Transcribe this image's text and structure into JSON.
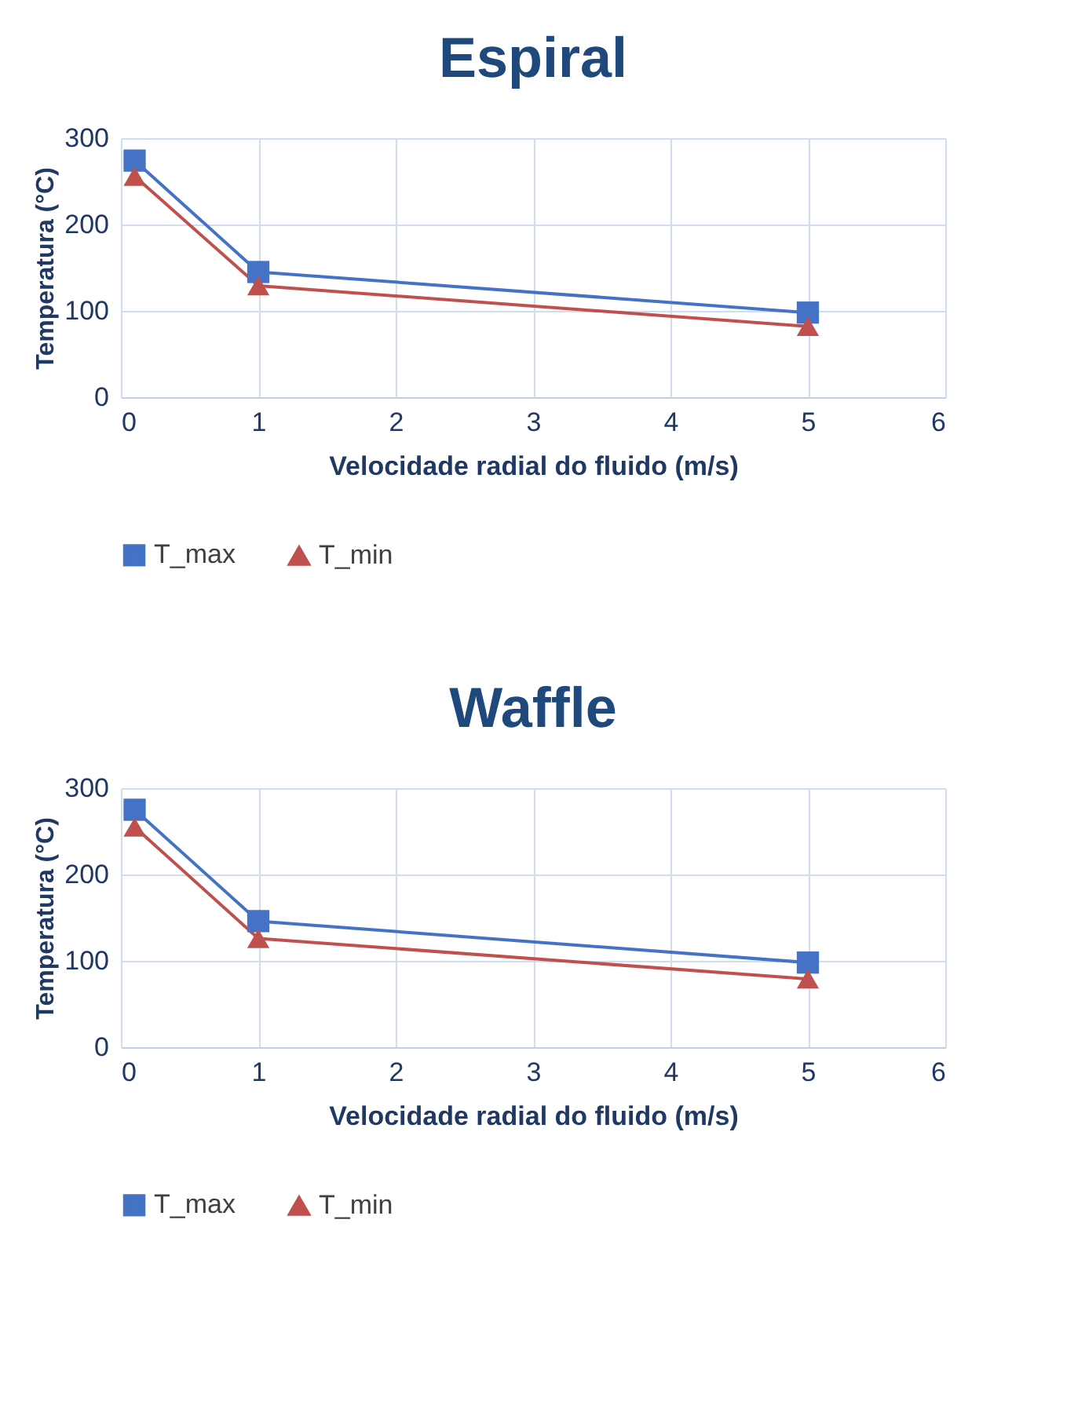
{
  "chart_data": [
    {
      "type": "line",
      "title": "Espiral",
      "xlabel": "Velocidade radial do fluido (m/s)",
      "ylabel": "Temperatura (°C)",
      "x": [
        0.1,
        1,
        5
      ],
      "series": [
        {
          "name": "T_max",
          "color": "#4472c4",
          "values": [
            274,
            145,
            98
          ],
          "marker": "square"
        },
        {
          "name": "T_min",
          "color": "#c0504d",
          "values": [
            256,
            129,
            82
          ],
          "marker": "triangle"
        }
      ],
      "xlim": [
        0,
        6
      ],
      "xticks": [
        0,
        1,
        2,
        3,
        4,
        5,
        6
      ],
      "ylim": [
        0,
        300
      ],
      "yticks": [
        0,
        100,
        200,
        300
      ],
      "grid": true,
      "legend": "bottom",
      "line_style": "solid"
    },
    {
      "type": "line",
      "title": "Waffle",
      "xlabel": "Velocidade radial do fluido (m/s)",
      "ylabel": "Temperatura (°C)",
      "x": [
        0.1,
        1,
        5
      ],
      "series": [
        {
          "name": "T_max",
          "color": "#4472c4",
          "values": [
            275,
            146,
            98
          ],
          "marker": "square"
        },
        {
          "name": "T_min",
          "color": "#c0504d",
          "values": [
            255,
            126,
            79
          ],
          "marker": "triangle"
        }
      ],
      "xlim": [
        0,
        6
      ],
      "xticks": [
        0,
        1,
        2,
        3,
        4,
        5,
        6
      ],
      "ylim": [
        0,
        300
      ],
      "yticks": [
        0,
        100,
        200,
        300
      ],
      "grid": true,
      "legend": "bottom",
      "line_style": "solid"
    }
  ]
}
